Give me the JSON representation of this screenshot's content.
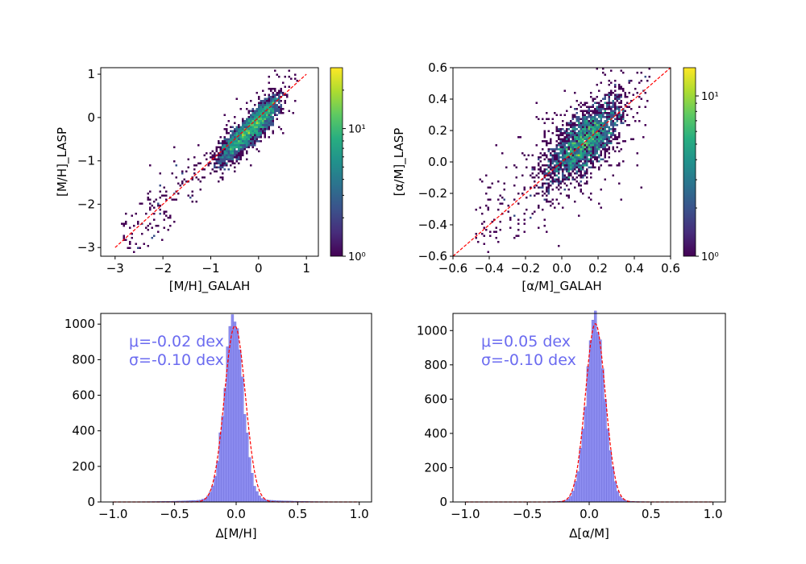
{
  "chart_data": [
    {
      "type": "heatmap",
      "panel": "top-left",
      "xlabel": "[M/H]_GALAH",
      "ylabel": "[M/H]_LASP",
      "xlim": [
        -3.3,
        1.25
      ],
      "ylim": [
        -3.2,
        1.15
      ],
      "xticks": [
        -3,
        -2,
        -1,
        0,
        1
      ],
      "xtick_labels": [
        "−3",
        "−2",
        "−1",
        "0",
        "1"
      ],
      "yticks": [
        -3,
        -2,
        -1,
        0,
        1
      ],
      "ytick_labels": [
        "−3",
        "−2",
        "−1",
        "0",
        "1"
      ],
      "one_to_one_line": {
        "x": [
          -3,
          1
        ],
        "y": [
          -3,
          1
        ],
        "color": "#ff0000",
        "style": "dashed"
      },
      "density_core": {
        "center": [
          -0.1,
          -0.2
        ],
        "slope": 1.0,
        "extent": [
          -1.0,
          0.45
        ],
        "scatter": 0.18
      },
      "colorbar": {
        "scale": "log",
        "min": 1,
        "max": 30,
        "ticks": [
          1,
          10
        ],
        "tick_labels": [
          "10⁰",
          "10¹"
        ],
        "colormap": "viridis"
      }
    },
    {
      "type": "heatmap",
      "panel": "top-right",
      "xlabel": "[α/M]_GALAH",
      "ylabel": "[α/M]_LASP",
      "xlim": [
        -0.6,
        0.6
      ],
      "ylim": [
        -0.6,
        0.6
      ],
      "xticks": [
        -0.6,
        -0.4,
        -0.2,
        0.0,
        0.2,
        0.4,
        0.6
      ],
      "xtick_labels": [
        "−0.6",
        "−0.4",
        "−0.2",
        "0.0",
        "0.2",
        "0.4",
        "0.6"
      ],
      "yticks": [
        -0.6,
        -0.4,
        -0.2,
        0.0,
        0.2,
        0.4,
        0.6
      ],
      "ytick_labels": [
        "−0.6",
        "−0.4",
        "−0.2",
        "0.0",
        "0.2",
        "0.4",
        "0.6"
      ],
      "one_to_one_line": {
        "x": [
          -0.6,
          0.6
        ],
        "y": [
          -0.6,
          0.6
        ],
        "color": "#ff0000",
        "style": "dashed"
      },
      "density_core": {
        "center": [
          0.07,
          0.08
        ],
        "slope": 0.9,
        "extent": [
          -0.05,
          0.3
        ],
        "scatter": 0.1
      },
      "colorbar": {
        "scale": "log",
        "min": 1,
        "max": 15,
        "ticks": [
          1,
          10
        ],
        "tick_labels": [
          "10⁰",
          "10¹"
        ],
        "colormap": "viridis"
      }
    },
    {
      "type": "bar",
      "panel": "bottom-left",
      "xlabel": "Δ[M/H]",
      "ylabel": "",
      "xlim": [
        -1.1,
        1.1
      ],
      "ylim": [
        0,
        1060
      ],
      "xticks": [
        -1.0,
        -0.5,
        0.0,
        0.5,
        1.0
      ],
      "xtick_labels": [
        "−1.0",
        "−0.5",
        "0.0",
        "0.5",
        "1.0"
      ],
      "yticks": [
        0,
        200,
        400,
        600,
        800,
        1000
      ],
      "ytick_labels": [
        "0",
        "200",
        "400",
        "600",
        "800",
        "1000"
      ],
      "annotations": [
        "μ=-0.02 dex",
        "σ=-0.10 dex"
      ],
      "histogram": {
        "mean": -0.02,
        "sigma": 0.075,
        "peak": 1010,
        "tail_fraction": 0.03,
        "tail_width": 0.25,
        "bin_width": 0.02,
        "range": [
          -1.0,
          1.0
        ]
      },
      "fit_curve": {
        "type": "gaussian",
        "mean": -0.01,
        "sigma": 0.085,
        "amplitude": 990,
        "color": "#ff0000",
        "style": "dashed"
      }
    },
    {
      "type": "bar",
      "panel": "bottom-right",
      "xlabel": "Δ[α/M]",
      "ylabel": "",
      "xlim": [
        -1.1,
        1.1
      ],
      "ylim": [
        0,
        1100
      ],
      "xticks": [
        -1.0,
        -0.5,
        0.0,
        0.5,
        1.0
      ],
      "xtick_labels": [
        "−1.0",
        "−0.5",
        "0.0",
        "0.5",
        "1.0"
      ],
      "yticks": [
        0,
        200,
        400,
        600,
        800,
        1000
      ],
      "ytick_labels": [
        "0",
        "200",
        "400",
        "600",
        "800",
        "1000"
      ],
      "annotations": [
        "μ=0.05 dex",
        "σ=-0.10 dex"
      ],
      "histogram": {
        "mean": 0.05,
        "sigma": 0.075,
        "peak": 1045,
        "tail_fraction": 0.015,
        "tail_width": 0.18,
        "bin_width": 0.02,
        "range": [
          -1.0,
          1.0
        ]
      },
      "fit_curve": {
        "type": "gaussian",
        "mean": 0.05,
        "sigma": 0.08,
        "amplitude": 1040,
        "color": "#ff0000",
        "style": "dashed"
      }
    }
  ]
}
